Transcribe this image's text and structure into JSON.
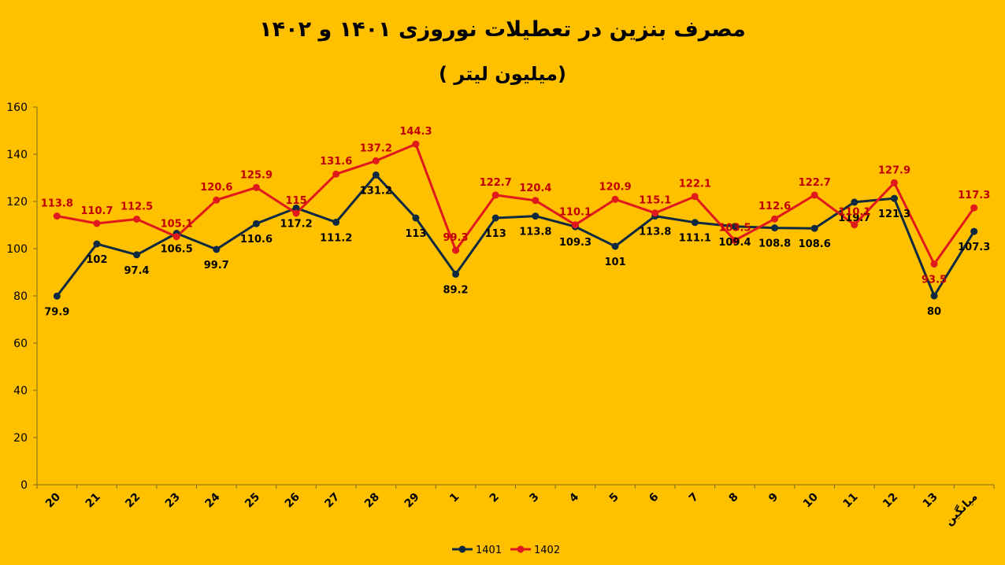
{
  "title": {
    "line1": "مصرف بنزین در تعطیلات نوروزی ۱۴۰۱ و ۱۴۰۲",
    "line2": "(میلیون لیتر )"
  },
  "colors": {
    "background": "#FFC000",
    "series_1401": "#0F2A40",
    "series_1402": "#E0191C",
    "label_1401": "#000000",
    "label_1402": "#C00000"
  },
  "chart_data": {
    "type": "line",
    "categories": [
      "20",
      "21",
      "22",
      "23",
      "24",
      "25",
      "26",
      "27",
      "28",
      "29",
      "1",
      "2",
      "3",
      "4",
      "5",
      "6",
      "7",
      "8",
      "9",
      "10",
      "11",
      "12",
      "13",
      "میانگین"
    ],
    "ylim": [
      0,
      160
    ],
    "yticks": [
      0,
      20,
      40,
      60,
      80,
      100,
      120,
      140,
      160
    ],
    "grid": false,
    "legend_position": "bottom",
    "series": [
      {
        "name": "1401",
        "values": [
          79.9,
          102,
          97.4,
          106.5,
          99.7,
          110.6,
          117.2,
          111.2,
          131.2,
          113,
          89.2,
          113,
          113.8,
          109.3,
          101,
          113.8,
          111.1,
          109.4,
          108.8,
          108.6,
          119.7,
          121.3,
          80,
          107.3
        ]
      },
      {
        "name": "1402",
        "values": [
          113.8,
          110.7,
          112.5,
          105.1,
          120.6,
          125.9,
          115,
          131.6,
          137.2,
          144.3,
          99.3,
          122.7,
          120.4,
          110.1,
          120.9,
          115.1,
          122.1,
          103.5,
          112.6,
          122.7,
          110.1,
          127.9,
          93.5,
          117.3
        ]
      }
    ]
  }
}
